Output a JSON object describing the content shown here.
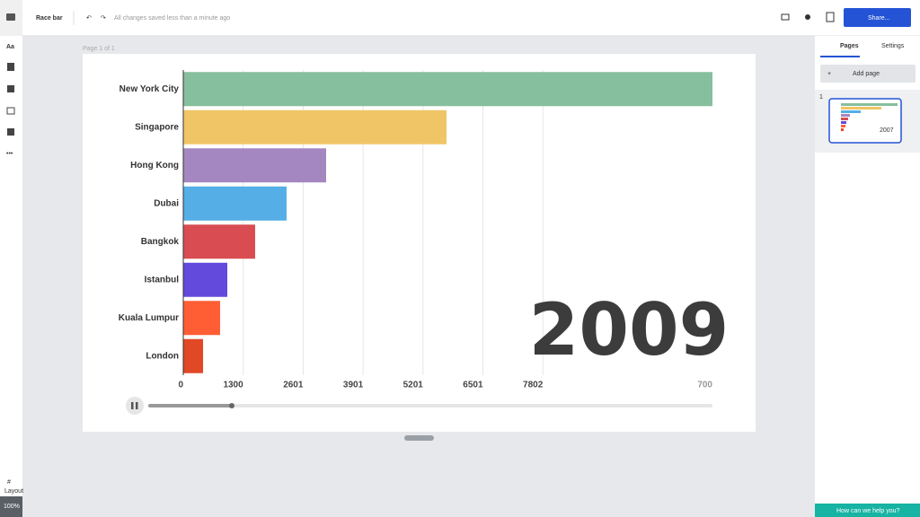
{
  "app": {
    "doc_title": "Race bar",
    "save_status": "All changes saved less than a minute ago",
    "share": "Share...",
    "page_label": "Page 1 of 1",
    "tabs": [
      "Pages",
      "Settings"
    ],
    "add_page": "Add page",
    "thumb_number": "1",
    "thumb_year": "2007",
    "sidebar_text": "Aa",
    "layout": "Layout",
    "zoom": "100%",
    "help": "How can we help you?"
  },
  "chart_data": {
    "type": "bar",
    "orientation": "horizontal",
    "year": "2009",
    "categories": [
      "New York City",
      "Singapore",
      "Hong Kong",
      "Dubai",
      "Bangkok",
      "Istanbul",
      "Kuala Lumpur",
      "London"
    ],
    "values": [
      11480,
      5711,
      3099,
      2241,
      1559,
      955,
      799,
      429
    ],
    "colors": [
      "#86bf9d",
      "#f0c566",
      "#a487c0",
      "#55aee6",
      "#d94d52",
      "#6349dc",
      "#ff5e35",
      "#e04826"
    ],
    "xlim": [
      0,
      11480
    ],
    "xticks": [
      0,
      1300,
      2601,
      3901,
      5201,
      6501,
      7802
    ],
    "axis_end_label": "700",
    "grid": true
  }
}
